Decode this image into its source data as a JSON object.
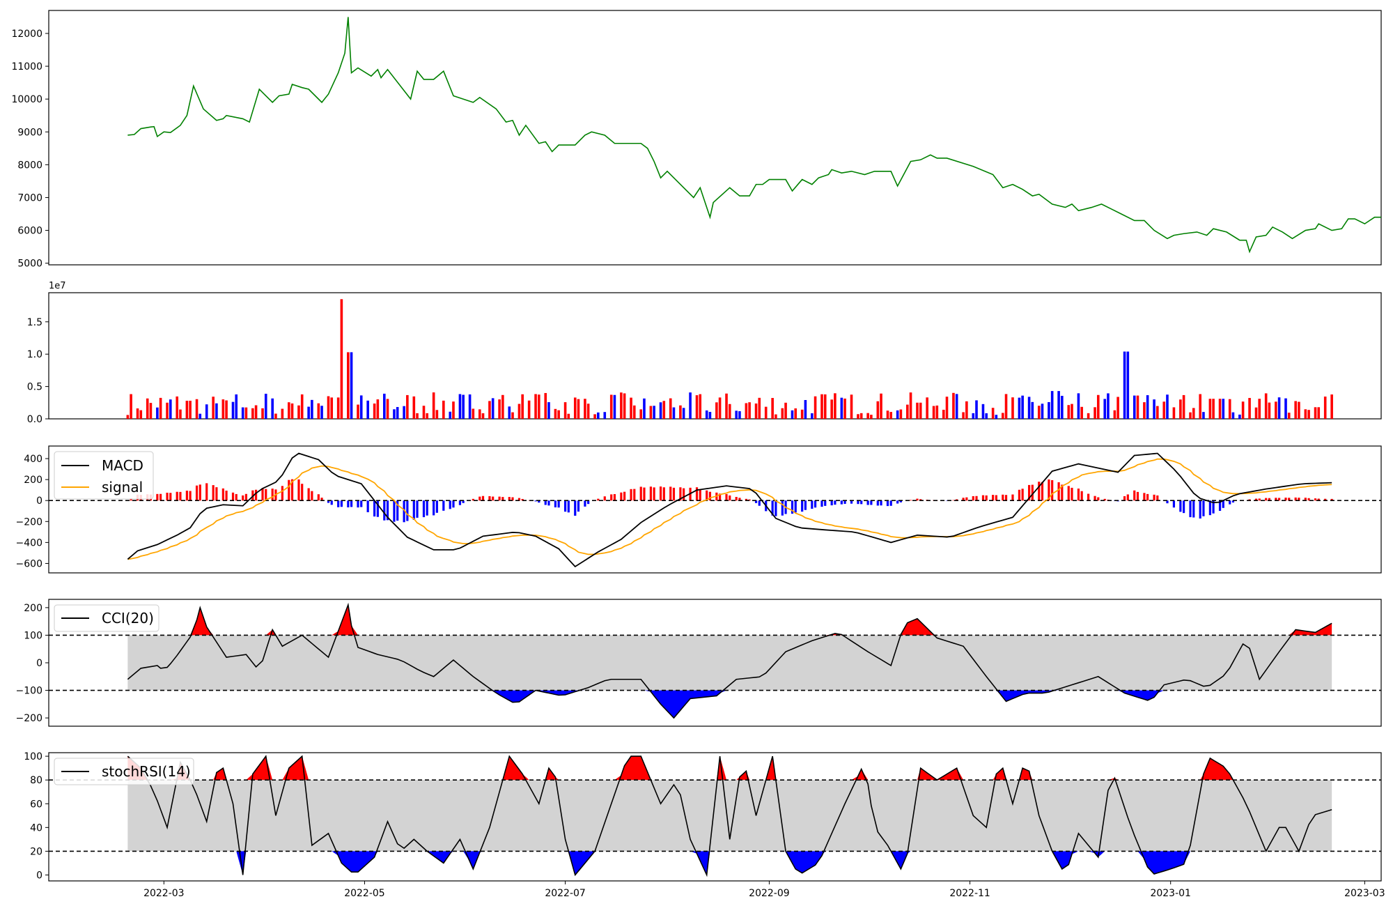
{
  "x_axis": {
    "type": "date",
    "range": [
      "2022-01-25",
      "2023-03-06"
    ],
    "ticks": [
      "2022-03",
      "2022-05",
      "2022-07",
      "2022-09",
      "2022-11",
      "2023-01",
      "2023-03"
    ]
  },
  "colors": {
    "price": "#008000",
    "up": "#ff0000",
    "down": "#0000ff",
    "macd": "#000000",
    "signal": "#ffa500",
    "band": "#d3d3d3"
  },
  "chart_data": [
    {
      "id": "price",
      "type": "line",
      "series": [
        {
          "color": "#008000",
          "points": [
            [
              "2022-02-18",
              8900
            ],
            [
              "2022-02-20",
              8920
            ],
            [
              "2022-02-22",
              9100
            ],
            [
              "2022-02-25",
              9150
            ],
            [
              "2022-02-26",
              9160
            ],
            [
              "2022-02-27",
              8860
            ],
            [
              "2022-03-01",
              9000
            ],
            [
              "2022-03-03",
              8980
            ],
            [
              "2022-03-06",
              9200
            ],
            [
              "2022-03-08",
              9500
            ],
            [
              "2022-03-10",
              10400
            ],
            [
              "2022-03-13",
              9700
            ],
            [
              "2022-03-17",
              9350
            ],
            [
              "2022-03-19",
              9400
            ],
            [
              "2022-03-20",
              9500
            ],
            [
              "2022-03-25",
              9400
            ],
            [
              "2022-03-27",
              9300
            ],
            [
              "2022-03-30",
              10300
            ],
            [
              "2022-04-03",
              9900
            ],
            [
              "2022-04-05",
              10100
            ],
            [
              "2022-04-08",
              10150
            ],
            [
              "2022-04-09",
              10450
            ],
            [
              "2022-04-12",
              10350
            ],
            [
              "2022-04-14",
              10300
            ],
            [
              "2022-04-18",
              9900
            ],
            [
              "2022-04-20",
              10150
            ],
            [
              "2022-04-23",
              10800
            ],
            [
              "2022-04-25",
              11400
            ],
            [
              "2022-04-26",
              12500
            ],
            [
              "2022-04-27",
              10800
            ],
            [
              "2022-04-29",
              10950
            ],
            [
              "2022-05-03",
              10700
            ],
            [
              "2022-05-05",
              10900
            ],
            [
              "2022-05-06",
              10650
            ],
            [
              "2022-05-08",
              10900
            ],
            [
              "2022-05-15",
              10000
            ],
            [
              "2022-05-17",
              10850
            ],
            [
              "2022-05-19",
              10600
            ],
            [
              "2022-05-22",
              10600
            ],
            [
              "2022-05-25",
              10850
            ],
            [
              "2022-05-28",
              10100
            ],
            [
              "2022-06-03",
              9900
            ],
            [
              "2022-06-05",
              10050
            ],
            [
              "2022-06-10",
              9700
            ],
            [
              "2022-06-13",
              9300
            ],
            [
              "2022-06-15",
              9350
            ],
            [
              "2022-06-17",
              8900
            ],
            [
              "2022-06-19",
              9200
            ],
            [
              "2022-06-23",
              8650
            ],
            [
              "2022-06-25",
              8700
            ],
            [
              "2022-06-27",
              8400
            ],
            [
              "2022-06-29",
              8600
            ],
            [
              "2022-07-04",
              8600
            ],
            [
              "2022-07-07",
              8900
            ],
            [
              "2022-07-09",
              9000
            ],
            [
              "2022-07-13",
              8900
            ],
            [
              "2022-07-16",
              8650
            ],
            [
              "2022-07-19",
              8650
            ],
            [
              "2022-07-24",
              8650
            ],
            [
              "2022-07-26",
              8500
            ],
            [
              "2022-07-28",
              8100
            ],
            [
              "2022-07-30",
              7600
            ],
            [
              "2022-08-01",
              7800
            ],
            [
              "2022-08-03",
              7600
            ],
            [
              "2022-08-09",
              7000
            ],
            [
              "2022-08-11",
              7300
            ],
            [
              "2022-08-14",
              6400
            ],
            [
              "2022-08-15",
              6850
            ],
            [
              "2022-08-20",
              7300
            ],
            [
              "2022-08-23",
              7050
            ],
            [
              "2022-08-26",
              7050
            ],
            [
              "2022-08-28",
              7400
            ],
            [
              "2022-08-30",
              7400
            ],
            [
              "2022-09-01",
              7550
            ],
            [
              "2022-09-06",
              7550
            ],
            [
              "2022-09-08",
              7200
            ],
            [
              "2022-09-11",
              7550
            ],
            [
              "2022-09-14",
              7400
            ],
            [
              "2022-09-16",
              7600
            ],
            [
              "2022-09-19",
              7700
            ],
            [
              "2022-09-20",
              7850
            ],
            [
              "2022-09-23",
              7750
            ],
            [
              "2022-09-26",
              7800
            ],
            [
              "2022-09-30",
              7700
            ],
            [
              "2022-10-03",
              7800
            ],
            [
              "2022-10-08",
              7800
            ],
            [
              "2022-10-10",
              7350
            ],
            [
              "2022-10-14",
              8100
            ],
            [
              "2022-10-17",
              8150
            ],
            [
              "2022-10-20",
              8300
            ],
            [
              "2022-10-22",
              8200
            ],
            [
              "2022-10-25",
              8200
            ],
            [
              "2022-11-02",
              7950
            ],
            [
              "2022-11-08",
              7700
            ],
            [
              "2022-11-11",
              7300
            ],
            [
              "2022-11-14",
              7400
            ],
            [
              "2022-11-17",
              7250
            ],
            [
              "2022-11-20",
              7050
            ],
            [
              "2022-11-22",
              7100
            ],
            [
              "2022-11-26",
              6800
            ],
            [
              "2022-11-30",
              6700
            ],
            [
              "2022-12-02",
              6800
            ],
            [
              "2022-12-04",
              6600
            ],
            [
              "2022-12-08",
              6700
            ],
            [
              "2022-12-11",
              6800
            ],
            [
              "2022-12-14",
              6650
            ],
            [
              "2022-12-17",
              6500
            ],
            [
              "2022-12-21",
              6300
            ],
            [
              "2022-12-24",
              6300
            ],
            [
              "2022-12-27",
              6000
            ],
            [
              "2022-12-31",
              5750
            ],
            [
              "2023-01-02",
              5850
            ],
            [
              "2023-01-05",
              5900
            ],
            [
              "2023-01-09",
              5950
            ],
            [
              "2023-01-12",
              5850
            ],
            [
              "2023-01-14",
              6050
            ],
            [
              "2023-01-18",
              5950
            ],
            [
              "2023-01-22",
              5700
            ],
            [
              "2023-01-24",
              5700
            ],
            [
              "2023-01-25",
              5350
            ],
            [
              "2023-01-27",
              5800
            ],
            [
              "2023-01-30",
              5850
            ],
            [
              "2023-02-01",
              6100
            ],
            [
              "2023-02-04",
              5950
            ],
            [
              "2023-02-07",
              5750
            ],
            [
              "2023-02-11",
              6000
            ],
            [
              "2023-02-14",
              6050
            ],
            [
              "2023-02-15",
              6200
            ],
            [
              "2023-02-19",
              6000
            ],
            [
              "2023-02-22",
              6050
            ],
            [
              "2023-02-24",
              6350
            ],
            [
              "2023-02-26",
              6350
            ],
            [
              "2023-03-01",
              6200
            ],
            [
              "2023-03-04",
              6400
            ],
            [
              "2023-03-06",
              6400
            ]
          ]
        }
      ],
      "ylim": [
        4950,
        12700
      ],
      "yticks": [
        "5000",
        "6000",
        "7000",
        "8000",
        "9000",
        "10000",
        "11000",
        "12000"
      ]
    },
    {
      "id": "volume",
      "type": "bar",
      "offset_label": "1e7",
      "ylim": [
        0,
        1.95
      ],
      "yticks": [
        "0.0",
        "0.5",
        "1.0",
        "1.5"
      ],
      "note": "values in 1e7 units, color = up/down day"
    },
    {
      "id": "macd",
      "type": "line",
      "legend": [
        "MACD",
        "signal"
      ],
      "legend_position": "upper left",
      "ylim": [
        -690,
        520
      ],
      "yticks": [
        "−600",
        "−400",
        "−200",
        "0",
        "200",
        "400"
      ],
      "zero_line": 0
    },
    {
      "id": "cci",
      "type": "area",
      "legend": [
        "CCI(20)"
      ],
      "legend_position": "upper left",
      "thresholds": [
        100,
        -100
      ],
      "ylim": [
        -230,
        230
      ],
      "yticks": [
        "−200",
        "−100",
        "0",
        "100",
        "200"
      ]
    },
    {
      "id": "stochrsi",
      "type": "area",
      "legend": [
        "stochRSI(14)"
      ],
      "legend_position": "upper left",
      "thresholds": [
        80,
        20
      ],
      "ylim": [
        -5,
        103
      ],
      "yticks": [
        "0",
        "20",
        "40",
        "60",
        "80",
        "100"
      ]
    }
  ]
}
